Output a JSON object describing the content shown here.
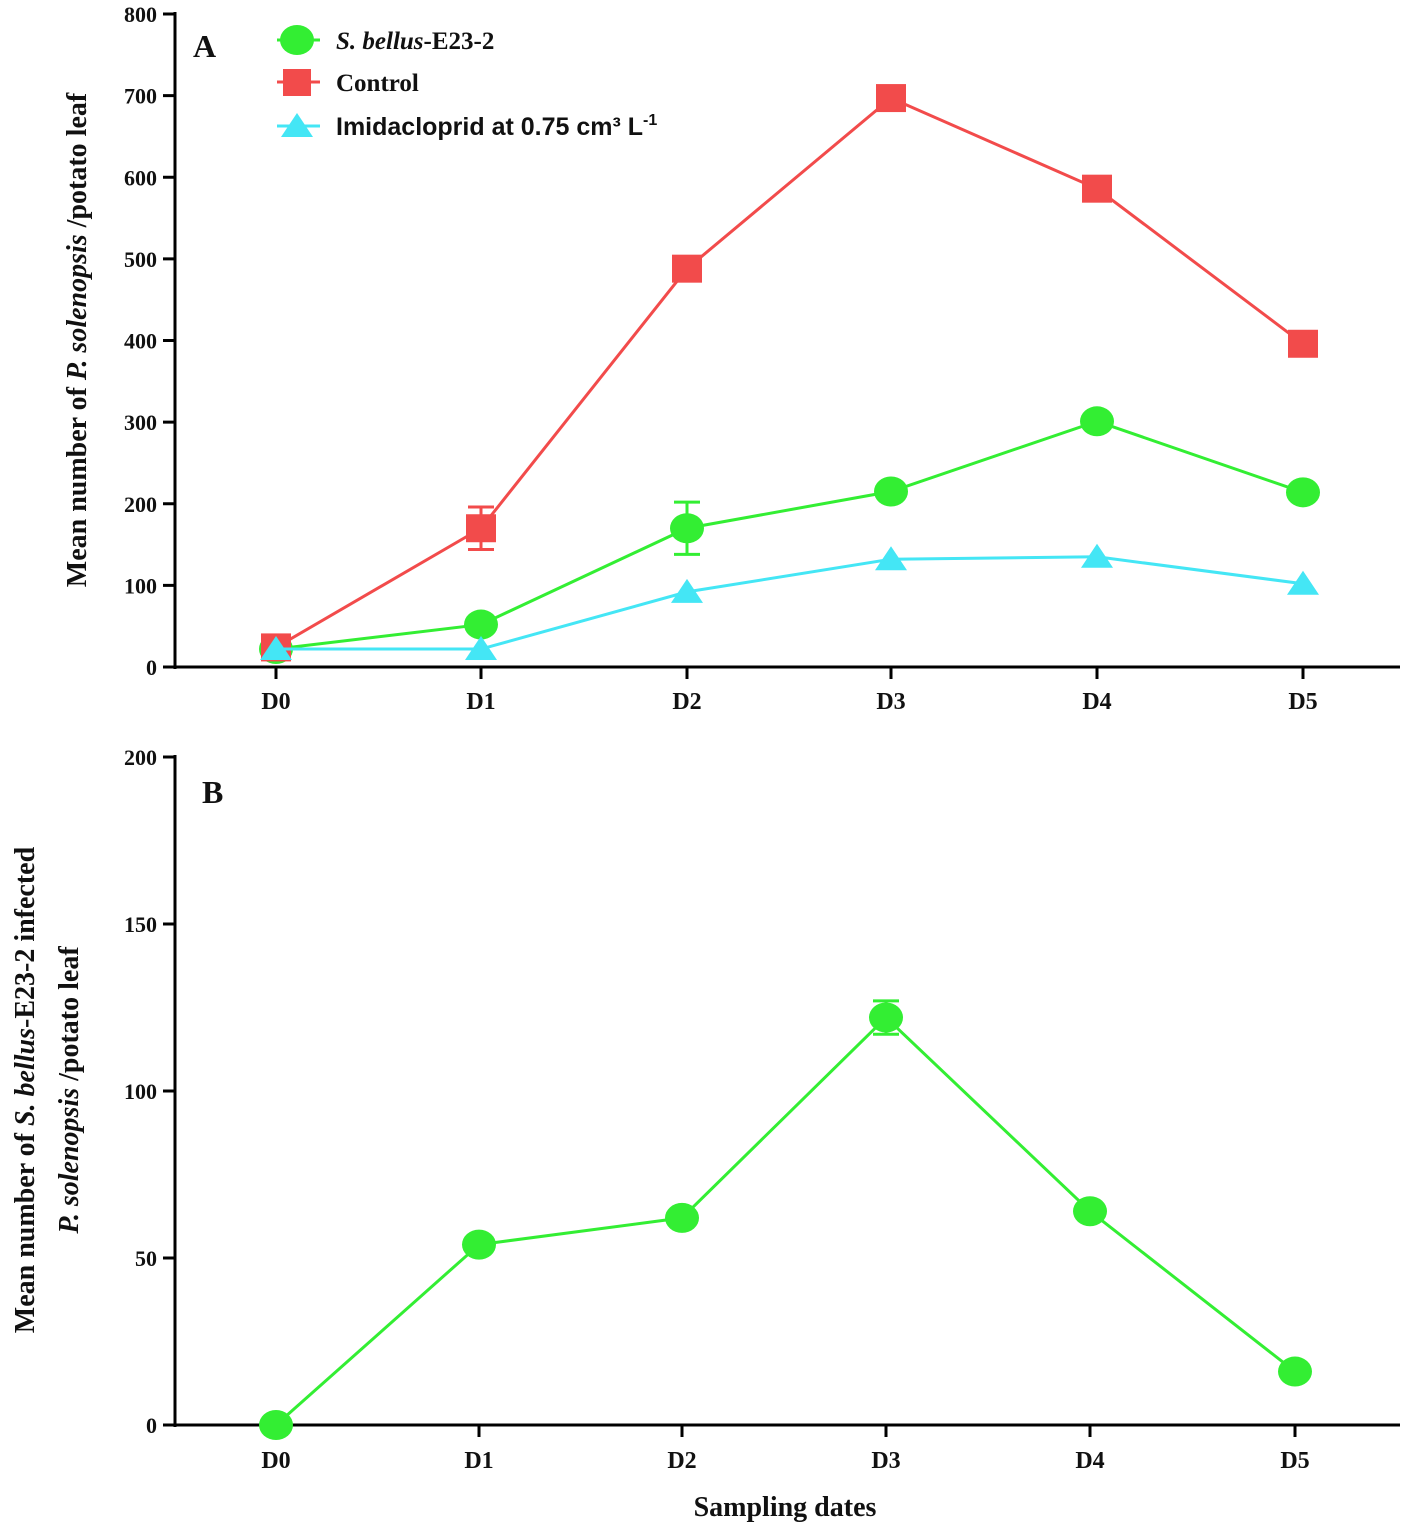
{
  "chart_data": [
    {
      "type": "line",
      "panel_label": "A",
      "categories": [
        "D0",
        "D1",
        "D2",
        "D3",
        "D4",
        "D5"
      ],
      "ylabel": {
        "prefix": "Mean number of ",
        "italic": "P. solenopsis",
        "suffix": " /potato leaf"
      },
      "xlabel": "",
      "ylim": [
        0,
        800
      ],
      "yticks": [
        "0",
        "100",
        "200",
        "300",
        "400",
        "500",
        "600",
        "700",
        "800"
      ],
      "series": [
        {
          "name_italic": "S. bellus",
          "name_rest": "-E23-2",
          "color": "#33ee33",
          "marker": "circle",
          "values": [
            22,
            52,
            170,
            215,
            301,
            214
          ],
          "errors": [
            0,
            0,
            32,
            0,
            0,
            0
          ]
        },
        {
          "name_italic": "",
          "name_rest": "Control",
          "color": "#f24b4b",
          "marker": "square",
          "values": [
            24,
            170,
            488,
            697,
            586,
            396
          ],
          "errors": [
            0,
            26,
            0,
            0,
            0,
            0
          ]
        },
        {
          "name_italic": "",
          "name_rest": "Imidacloprid at 0.75 cm³ L",
          "superscript": "-1",
          "color": "#44e6f5",
          "marker": "triangle",
          "values": [
            22,
            22,
            92,
            132,
            135,
            102
          ],
          "errors": [
            0,
            0,
            0,
            0,
            0,
            0
          ]
        }
      ],
      "legend_position": "top-left"
    },
    {
      "type": "line",
      "panel_label": "B",
      "categories": [
        "D0",
        "D1",
        "D2",
        "D3",
        "D4",
        "D5"
      ],
      "ylabel_line1": {
        "prefix": "Mean number of ",
        "italic": "S. bellus",
        "suffix": "-E23-2 infected"
      },
      "ylabel_line2": {
        "prefix": "",
        "italic": "P. solenopsis",
        "suffix": " /potato leaf"
      },
      "xlabel": "Sampling dates",
      "ylim": [
        0,
        200
      ],
      "yticks": [
        "0",
        "50",
        "100",
        "150",
        "200"
      ],
      "series": [
        {
          "name": "S. bellus-E23-2 infected",
          "color": "#33ee33",
          "marker": "circle",
          "values": [
            0,
            54,
            62,
            122,
            64,
            16
          ],
          "errors": [
            0,
            0,
            0,
            5,
            0,
            0
          ]
        }
      ]
    }
  ]
}
